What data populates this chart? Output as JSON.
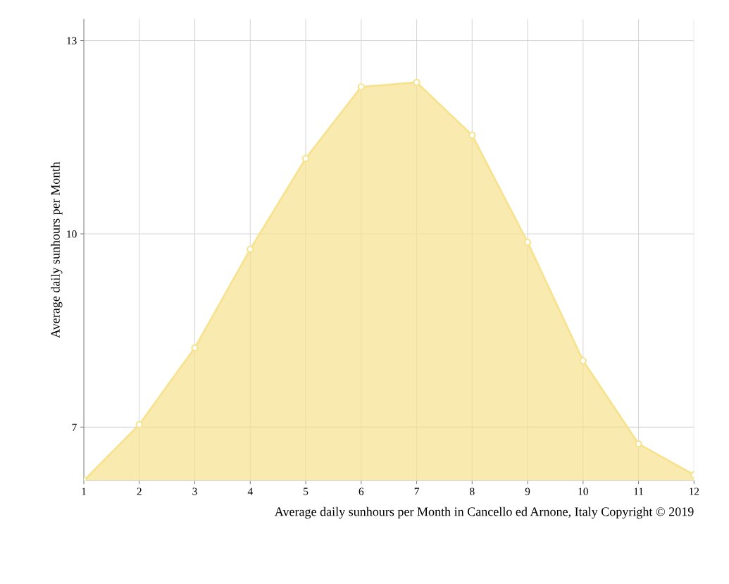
{
  "chart_data": {
    "type": "area",
    "xlabel": "Average daily sunhours per Month in Cancello ed Arnone, Italy Copyright © 2019",
    "ylabel": "Average daily sunhours per Month",
    "x": [
      1,
      2,
      3,
      4,
      5,
      6,
      7,
      8,
      9,
      10,
      11,
      12
    ],
    "series": [
      {
        "color": "#f7e38f",
        "values": [
          6.17,
          7.04,
          8.23,
          9.76,
          11.17,
          12.28,
          12.35,
          11.53,
          9.87,
          8.03,
          6.74,
          6.26
        ]
      }
    ],
    "xlim": [
      1,
      12
    ],
    "xticks": [
      1,
      2,
      3,
      4,
      5,
      6,
      7,
      8,
      9,
      10,
      11,
      12
    ],
    "ylim": [
      6.17,
      13.33
    ],
    "yticks": [
      7,
      10,
      13
    ],
    "grid": true,
    "marker": "circle",
    "legend": false
  }
}
